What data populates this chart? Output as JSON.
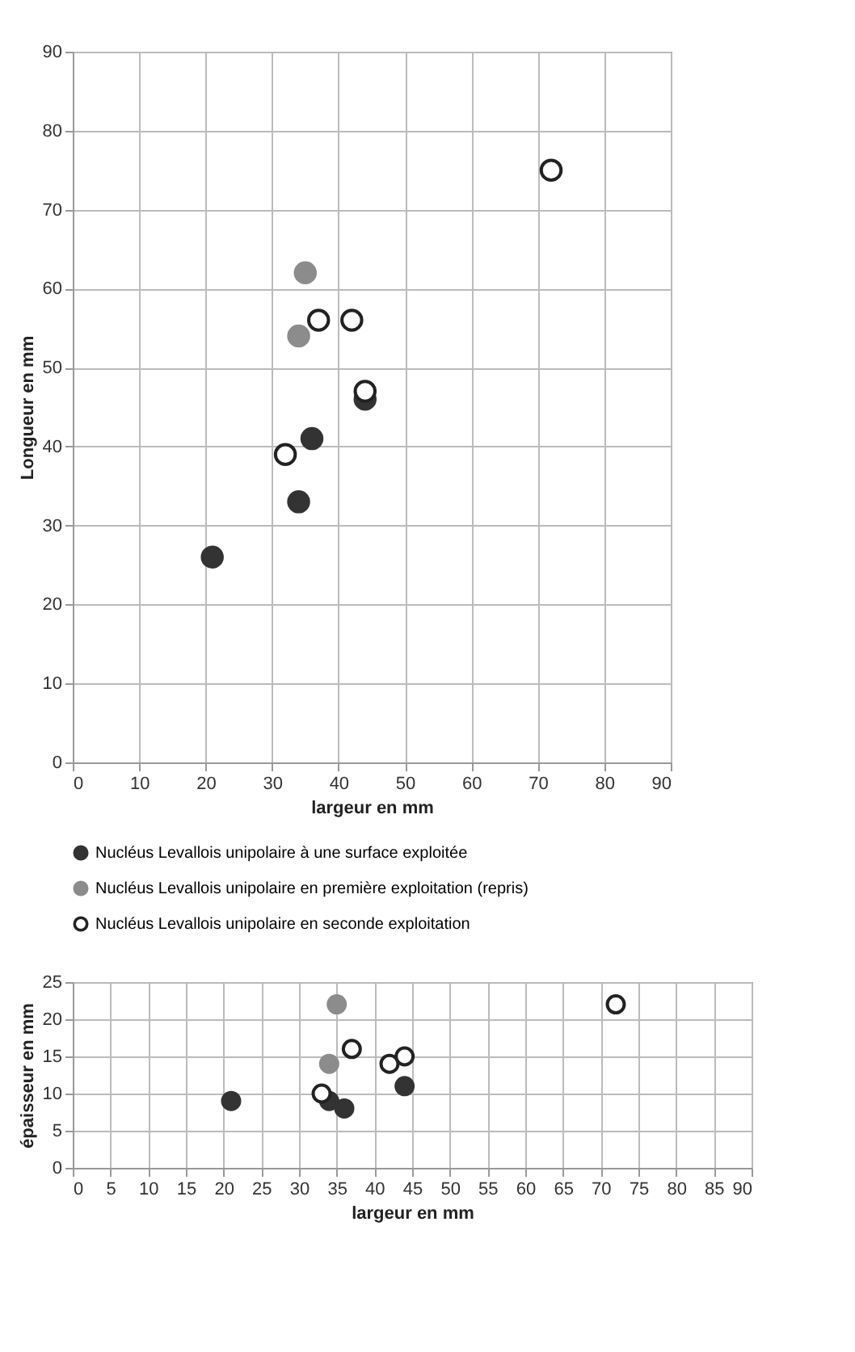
{
  "chart_data": [
    {
      "type": "scatter",
      "xlabel": "largeur en mm",
      "ylabel": "Longueur en mm",
      "xlim": [
        0,
        90
      ],
      "ylim": [
        0,
        90
      ],
      "xticks": [
        0,
        10,
        20,
        30,
        40,
        50,
        60,
        70,
        80,
        90
      ],
      "yticks": [
        0,
        10,
        20,
        30,
        40,
        50,
        60,
        70,
        80,
        90
      ],
      "grid": true,
      "legend": "bottom",
      "marker": "circle",
      "series": [
        {
          "name": "Nucléus Levallois unipolaire à une surface exploitée",
          "color": "#333333",
          "x": [
            21,
            34,
            36,
            44
          ],
          "values": [
            26,
            33,
            41,
            46
          ]
        },
        {
          "name": "Nucléus Levallois unipolaire en première exploitation (repris)",
          "color": "#8c8c8c",
          "x": [
            34,
            35
          ],
          "values": [
            54,
            62
          ]
        },
        {
          "name": "Nucléus Levallois unipolaire en seconde exploitation",
          "color": "#ffffff",
          "x": [
            32,
            37,
            42,
            44,
            72
          ],
          "values": [
            39,
            56,
            56,
            47,
            75
          ]
        }
      ]
    },
    {
      "type": "scatter",
      "xlabel": "largeur en mm",
      "ylabel": "épaisseur en mm",
      "xlim": [
        0,
        90
      ],
      "ylim": [
        0,
        25
      ],
      "xticks": [
        0,
        5,
        10,
        15,
        20,
        25,
        30,
        35,
        40,
        45,
        50,
        55,
        60,
        65,
        70,
        75,
        80,
        85,
        90
      ],
      "yticks": [
        0,
        5,
        10,
        15,
        20,
        25
      ],
      "grid": true,
      "legend": false,
      "marker": "circle",
      "series": [
        {
          "color": "#333333",
          "x": [
            21,
            34,
            36,
            44
          ],
          "values": [
            9,
            9,
            8,
            11
          ]
        },
        {
          "color": "#8c8c8c",
          "x": [
            34,
            35
          ],
          "values": [
            14,
            22
          ]
        },
        {
          "color": "#ffffff",
          "x": [
            33,
            37,
            42,
            44,
            72
          ],
          "values": [
            10,
            16,
            14,
            15,
            22
          ]
        }
      ]
    }
  ]
}
